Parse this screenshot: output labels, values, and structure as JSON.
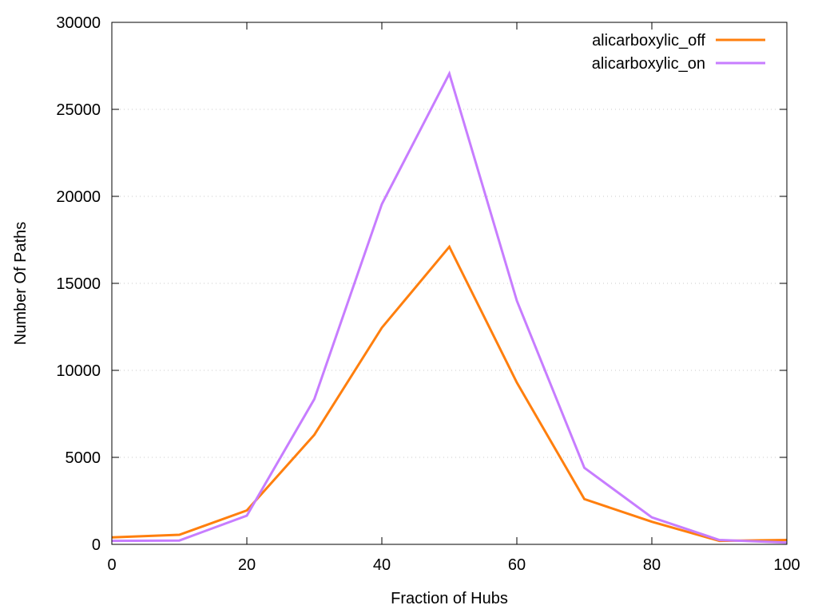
{
  "chart_data": {
    "type": "line",
    "title": "",
    "xlabel": "Fraction of Hubs",
    "ylabel": "Number Of Paths",
    "xlim": [
      0,
      100
    ],
    "ylim": [
      0,
      30000
    ],
    "x_ticks": [
      0,
      20,
      40,
      60,
      80,
      100
    ],
    "y_ticks": [
      0,
      5000,
      10000,
      15000,
      20000,
      25000,
      30000
    ],
    "grid": "horizontal-dotted",
    "legend_position": "top-right",
    "x": [
      0,
      10,
      20,
      30,
      40,
      50,
      60,
      70,
      80,
      90,
      100
    ],
    "series": [
      {
        "name": "alicarboxylic_off",
        "color": "#ff7f0e",
        "values": [
          400,
          550,
          1950,
          6300,
          12450,
          17100,
          9300,
          2600,
          1300,
          200,
          250
        ]
      },
      {
        "name": "alicarboxylic_on",
        "color": "#c77dff",
        "values": [
          200,
          220,
          1650,
          8350,
          19550,
          27050,
          14000,
          4400,
          1550,
          250,
          100
        ]
      }
    ]
  }
}
